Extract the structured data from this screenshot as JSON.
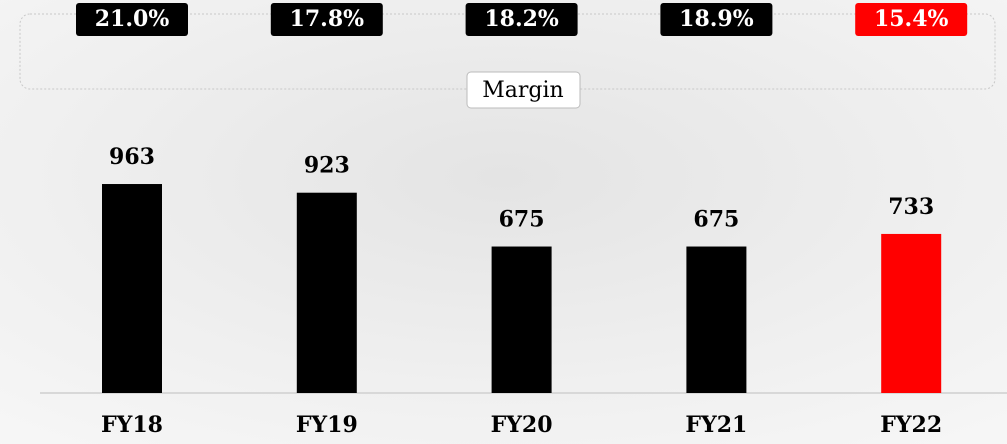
{
  "chart_data": {
    "type": "bar",
    "categories": [
      "FY18",
      "FY19",
      "FY20",
      "FY21",
      "FY22"
    ],
    "values": [
      963,
      923,
      675,
      675,
      733
    ],
    "colors": [
      "#000000",
      "#000000",
      "#000000",
      "#000000",
      "#ff0000"
    ],
    "ylim": [
      0,
      1000
    ],
    "margin": {
      "label": "Margin",
      "values": [
        21.0,
        17.8,
        18.2,
        18.9,
        15.4
      ],
      "value_labels": [
        "21.0%",
        "17.8%",
        "18.2%",
        "18.9%",
        "15.4%"
      ]
    }
  }
}
